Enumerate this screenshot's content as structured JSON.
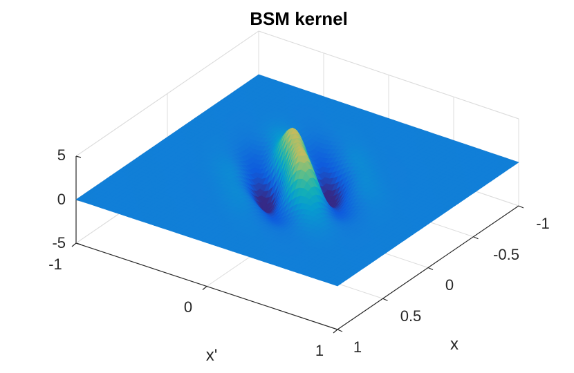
{
  "chart_data": {
    "type": "surface",
    "title": "BSM kernel",
    "xlabel": "x",
    "ylabel": "x'",
    "zlabel": "",
    "xlim": [
      -1,
      1
    ],
    "ylim": [
      -1,
      1
    ],
    "zlim": [
      -5,
      5
    ],
    "x_ticks": [
      "-1",
      "-0.5",
      "0",
      "0.5",
      "1"
    ],
    "y_ticks": [
      "-1",
      "0",
      "1"
    ],
    "z_ticks": [
      "5",
      "0",
      "-5"
    ],
    "grid": true,
    "colormap": "parula",
    "peak": {
      "x": 0,
      "y": 0,
      "z": 5
    },
    "surface": {
      "function": "oscillating kernel centered at origin",
      "peak_value": 5,
      "min_value": -2.5,
      "background_value": 0
    }
  }
}
